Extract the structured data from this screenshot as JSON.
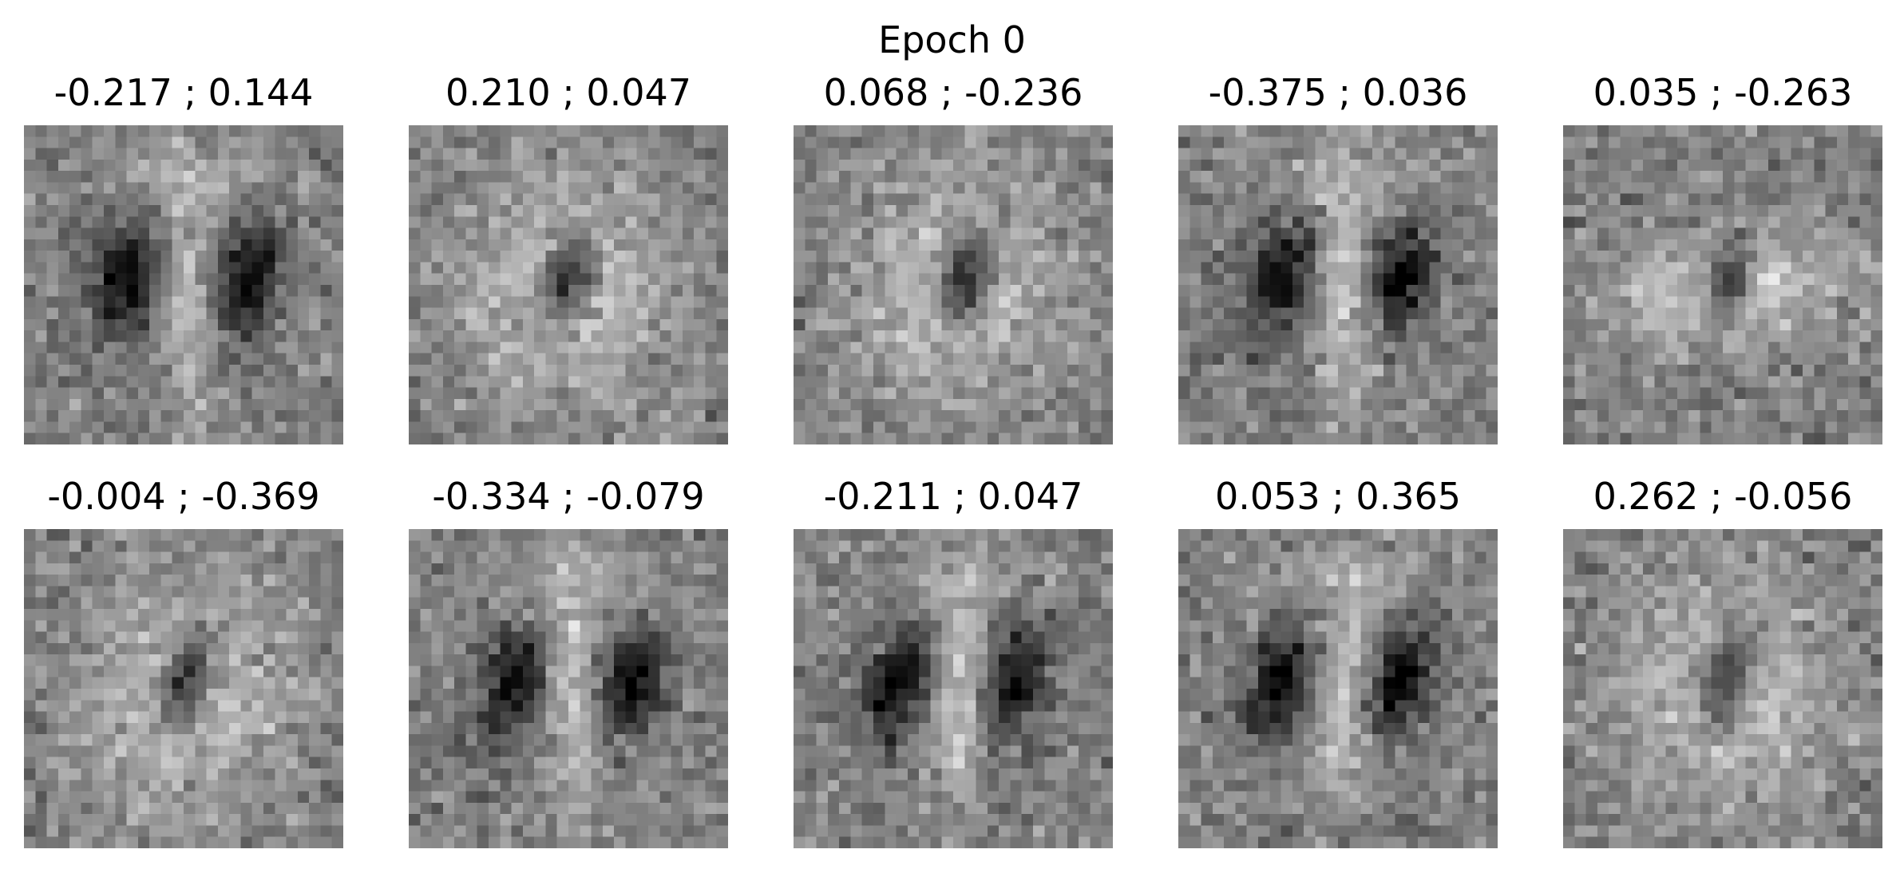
{
  "figure": {
    "title": "Epoch 0",
    "panels": [
      {
        "label": "-0.217 ; 0.144",
        "shape": "two-ovals"
      },
      {
        "label": "0.210 ; 0.047",
        "shape": "ring"
      },
      {
        "label": "0.068 ; -0.236",
        "shape": "ring"
      },
      {
        "label": "-0.375 ; 0.036",
        "shape": "two-ovals"
      },
      {
        "label": "0.035 ; -0.263",
        "shape": "bar-hole"
      },
      {
        "label": "-0.004 ; -0.369",
        "shape": "ring"
      },
      {
        "label": "-0.334 ; -0.079",
        "shape": "two-ovals"
      },
      {
        "label": "-0.211 ; 0.047",
        "shape": "two-ovals"
      },
      {
        "label": "0.053 ; 0.365",
        "shape": "two-ovals"
      },
      {
        "label": "0.262 ; -0.056",
        "shape": "ring"
      }
    ],
    "colormap": "gray"
  }
}
